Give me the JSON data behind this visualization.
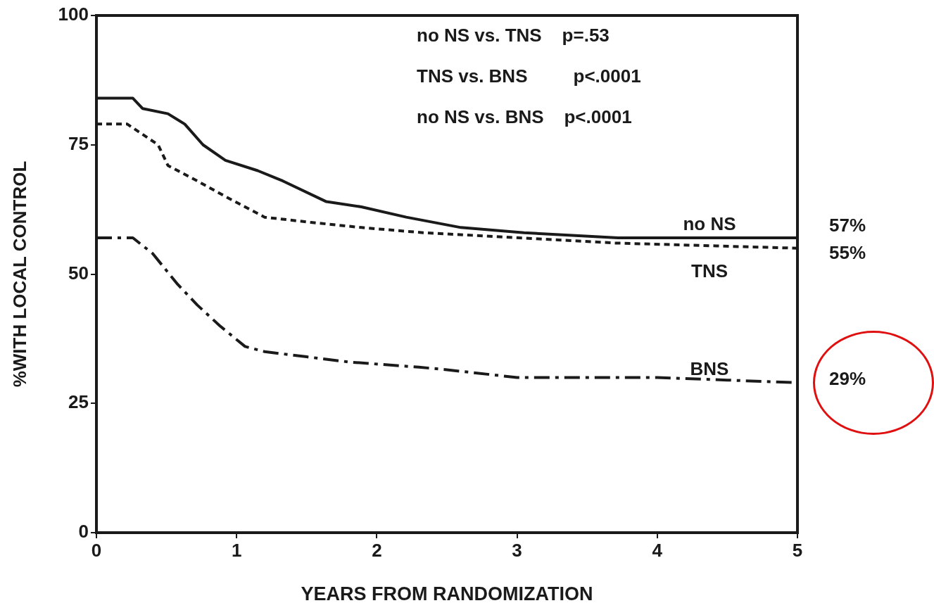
{
  "chart_data": {
    "type": "line",
    "xlabel": "YEARS FROM RANDOMIZATION",
    "ylabel": "%WITH LOCAL CONTROL",
    "xlim": [
      0,
      5
    ],
    "xticks": [
      0,
      1,
      2,
      3,
      4,
      5
    ],
    "ylim": [
      0,
      100
    ],
    "yticks": [
      0,
      25,
      50,
      75,
      100
    ],
    "grid": false,
    "legend": false,
    "marker": "none",
    "series": [
      {
        "name": "no NS",
        "color": "#1a1a1a",
        "line_style": "solid",
        "x": [
          0,
          0.26,
          0.33,
          0.51,
          0.63,
          0.76,
          0.92,
          1.15,
          1.33,
          1.64,
          1.89,
          2.21,
          2.6,
          3.05,
          3.72,
          5
        ],
        "values": [
          84,
          84,
          82,
          81,
          79,
          75,
          72,
          70,
          68,
          64,
          63,
          61,
          59,
          58,
          57,
          57
        ]
      },
      {
        "name": "TNS",
        "color": "#1a1a1a",
        "line_style": "dotted",
        "x": [
          0,
          0.22,
          0.44,
          0.51,
          0.72,
          0.92,
          1.2,
          1.53,
          1.89,
          2.33,
          2.68,
          3.7,
          5
        ],
        "values": [
          79,
          79,
          75,
          71,
          68,
          65,
          61,
          60,
          59,
          58,
          57.5,
          56,
          55
        ]
      },
      {
        "name": "BNS",
        "color": "#1a1a1a",
        "line_style": "dashed",
        "x": [
          0,
          0.26,
          0.4,
          0.58,
          0.72,
          0.88,
          1.06,
          1.2,
          1.5,
          1.8,
          2.3,
          2.5,
          3,
          3.5,
          4,
          4.5,
          5
        ],
        "values": [
          57,
          57,
          54,
          48,
          44,
          40,
          36,
          35,
          34,
          33,
          32,
          31.5,
          30,
          30,
          30,
          29.5,
          29
        ]
      }
    ],
    "annotations": [
      "no NS vs. TNS    p=.53",
      "TNS vs. BNS         p<.0001",
      "no NS vs. BNS    p<.0001",
      "57%",
      "55%",
      "29%"
    ]
  }
}
